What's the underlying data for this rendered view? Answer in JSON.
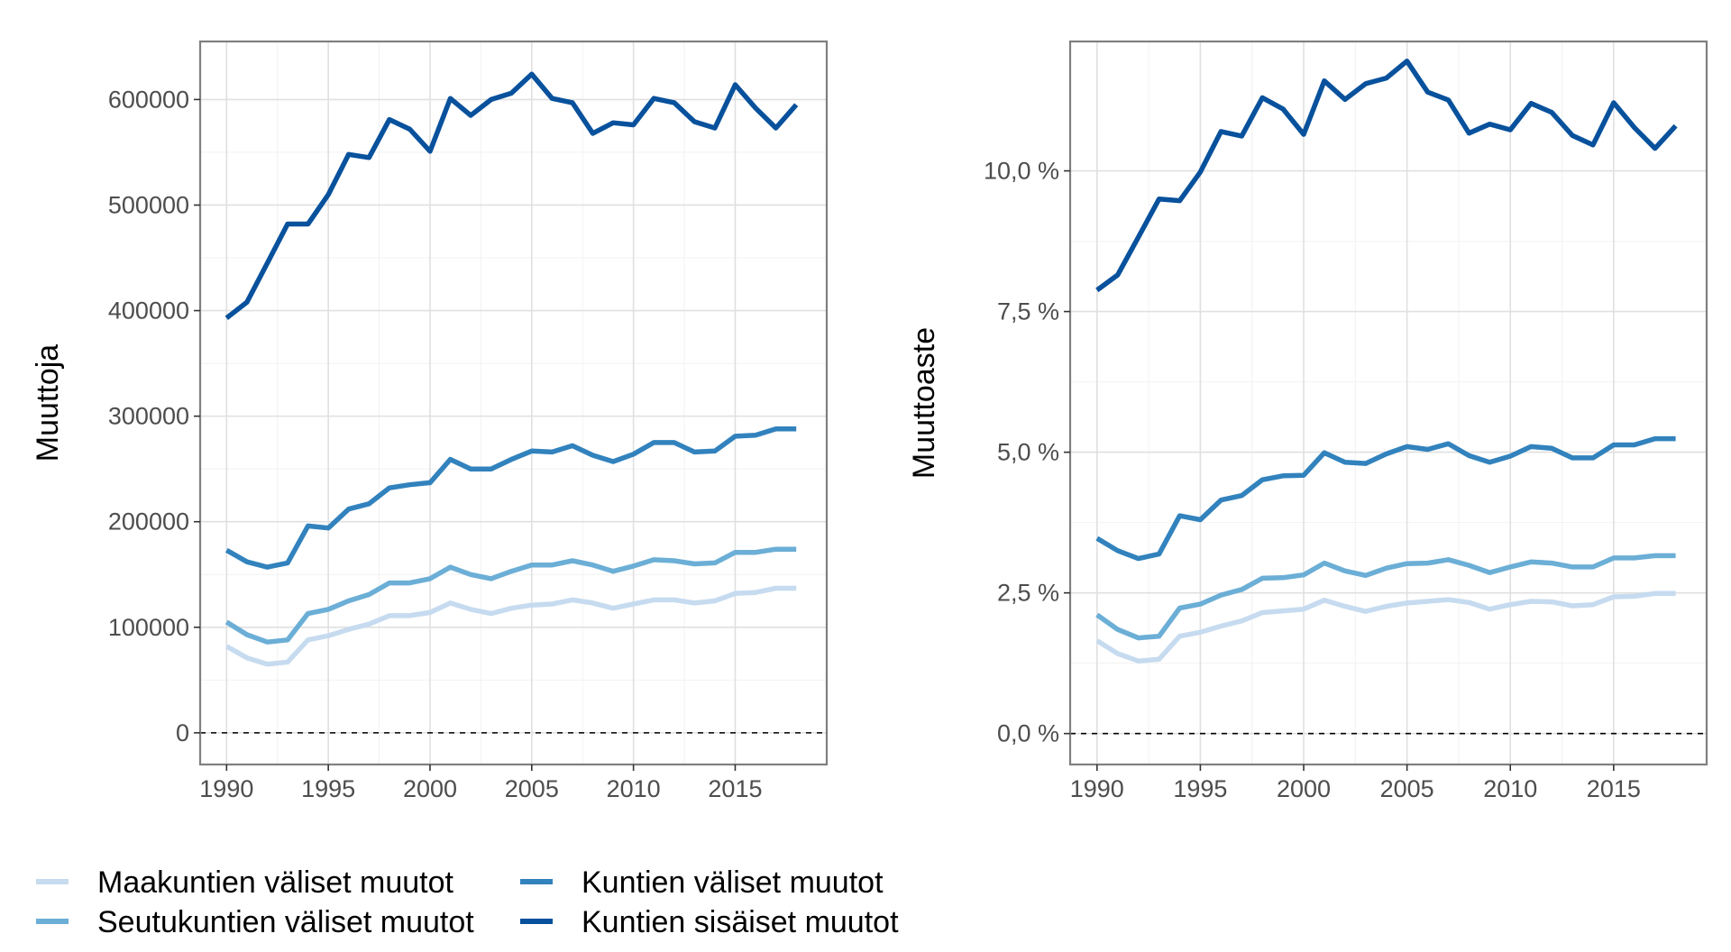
{
  "chart_data": [
    {
      "type": "line",
      "title": "",
      "xlabel": "",
      "ylabel": "Muuttoja",
      "xlim": [
        1988.7,
        2019.5
      ],
      "ylim": [
        -30000,
        655000
      ],
      "x_ticks": [
        1990,
        1995,
        2000,
        2005,
        2010,
        2015
      ],
      "x_tick_labels": [
        "1990",
        "1995",
        "2000",
        "2005",
        "2010",
        "2015"
      ],
      "y_ticks": [
        0,
        100000,
        200000,
        300000,
        400000,
        500000,
        600000
      ],
      "y_tick_labels": [
        "0",
        "100000",
        "200000",
        "300000",
        "400000",
        "500000",
        "600000"
      ],
      "grid": true,
      "reference_line": {
        "y": 0,
        "style": "dashed"
      },
      "x": [
        1990,
        1991,
        1992,
        1993,
        1994,
        1995,
        1996,
        1997,
        1998,
        1999,
        2000,
        2001,
        2002,
        2003,
        2004,
        2005,
        2006,
        2007,
        2008,
        2009,
        2010,
        2011,
        2012,
        2013,
        2014,
        2015,
        2016,
        2017,
        2018
      ],
      "series": [
        {
          "name": "Maakuntien väliset muutot",
          "color": "#c6dbef",
          "values": [
            82000,
            71000,
            65000,
            67000,
            88000,
            92000,
            98000,
            103000,
            111000,
            111000,
            114000,
            123000,
            117000,
            113000,
            118000,
            121000,
            122000,
            126000,
            123000,
            118000,
            122000,
            126000,
            126000,
            123000,
            125000,
            132000,
            133000,
            137000,
            137000
          ]
        },
        {
          "name": "Seutukuntien väliset muutot",
          "color": "#6baed6",
          "values": [
            105000,
            93000,
            86000,
            88000,
            113000,
            117000,
            125000,
            131000,
            142000,
            142000,
            146000,
            157000,
            150000,
            146000,
            153000,
            159000,
            159000,
            163000,
            159000,
            153000,
            158000,
            164000,
            163000,
            160000,
            161000,
            171000,
            171000,
            174000,
            174000
          ]
        },
        {
          "name": "Kuntien väliset muutot",
          "color": "#3182bd",
          "values": [
            173000,
            162000,
            157000,
            161000,
            196000,
            194000,
            212000,
            217000,
            232000,
            235000,
            237000,
            259000,
            250000,
            250000,
            259000,
            267000,
            266000,
            272000,
            263000,
            257000,
            264000,
            275000,
            275000,
            266000,
            267000,
            281000,
            282000,
            288000,
            288000
          ]
        },
        {
          "name": "Kuntien sisäiset muutot",
          "color": "#08519c",
          "values": [
            393000,
            408000,
            445000,
            482000,
            482000,
            510000,
            548000,
            545000,
            581000,
            572000,
            551000,
            601000,
            585000,
            600000,
            606000,
            624000,
            601000,
            597000,
            568000,
            578000,
            576000,
            601000,
            597000,
            579000,
            573000,
            614000,
            592000,
            573000,
            595000
          ]
        }
      ]
    },
    {
      "type": "line",
      "title": "",
      "xlabel": "",
      "ylabel": "Muuttoaste",
      "xlim": [
        1988.7,
        2019.5
      ],
      "ylim": [
        -0.55,
        12.3
      ],
      "x_ticks": [
        1990,
        1995,
        2000,
        2005,
        2010,
        2015
      ],
      "x_tick_labels": [
        "1990",
        "1995",
        "2000",
        "2005",
        "2010",
        "2015"
      ],
      "y_ticks": [
        0,
        2.5,
        5,
        7.5,
        10
      ],
      "y_tick_labels": [
        "0,0 %",
        "2,5 %",
        "5,0 %",
        "7,5 %",
        "10,0 %"
      ],
      "grid": true,
      "reference_line": {
        "y": 0,
        "style": "dashed"
      },
      "x": [
        1990,
        1991,
        1992,
        1993,
        1994,
        1995,
        1996,
        1997,
        1998,
        1999,
        2000,
        2001,
        2002,
        2003,
        2004,
        2005,
        2006,
        2007,
        2008,
        2009,
        2010,
        2011,
        2012,
        2013,
        2014,
        2015,
        2016,
        2017,
        2018
      ],
      "series": [
        {
          "name": "Maakuntien väliset muutot",
          "color": "#c6dbef",
          "values": [
            1.65,
            1.42,
            1.29,
            1.32,
            1.73,
            1.8,
            1.91,
            2.0,
            2.15,
            2.18,
            2.21,
            2.37,
            2.26,
            2.17,
            2.26,
            2.32,
            2.35,
            2.38,
            2.33,
            2.21,
            2.29,
            2.35,
            2.34,
            2.27,
            2.29,
            2.43,
            2.44,
            2.49,
            2.49
          ]
        },
        {
          "name": "Seutukuntien väliset muutot",
          "color": "#6baed6",
          "values": [
            2.11,
            1.85,
            1.7,
            1.73,
            2.23,
            2.3,
            2.46,
            2.56,
            2.76,
            2.77,
            2.82,
            3.03,
            2.89,
            2.81,
            2.94,
            3.02,
            3.03,
            3.09,
            2.99,
            2.86,
            2.96,
            3.05,
            3.03,
            2.96,
            2.96,
            3.12,
            3.12,
            3.16,
            3.16
          ]
        },
        {
          "name": "Kuntien väliset muutot",
          "color": "#3182bd",
          "values": [
            3.47,
            3.25,
            3.11,
            3.19,
            3.87,
            3.8,
            4.15,
            4.23,
            4.51,
            4.58,
            4.59,
            4.99,
            4.82,
            4.8,
            4.97,
            5.1,
            5.05,
            5.15,
            4.94,
            4.82,
            4.93,
            5.1,
            5.07,
            4.9,
            4.9,
            5.13,
            5.13,
            5.24,
            5.24
          ]
        },
        {
          "name": "Kuntien sisäiset muutot",
          "color": "#08519c",
          "values": [
            7.88,
            8.15,
            8.82,
            9.5,
            9.47,
            9.98,
            10.7,
            10.62,
            11.3,
            11.1,
            10.65,
            11.6,
            11.27,
            11.55,
            11.65,
            11.95,
            11.4,
            11.26,
            10.67,
            10.83,
            10.73,
            11.2,
            11.04,
            10.63,
            10.46,
            11.21,
            10.77,
            10.4,
            10.8
          ]
        }
      ]
    }
  ],
  "legend": {
    "placement": "bottom-left",
    "items": [
      {
        "label": "Maakuntien väliset muutot",
        "color": "#c6dbef"
      },
      {
        "label": "Seutukuntien väliset muutot",
        "color": "#6baed6"
      },
      {
        "label": "Kuntien väliset muutot",
        "color": "#3182bd"
      },
      {
        "label": "Kuntien sisäiset muutot",
        "color": "#08519c"
      }
    ]
  }
}
